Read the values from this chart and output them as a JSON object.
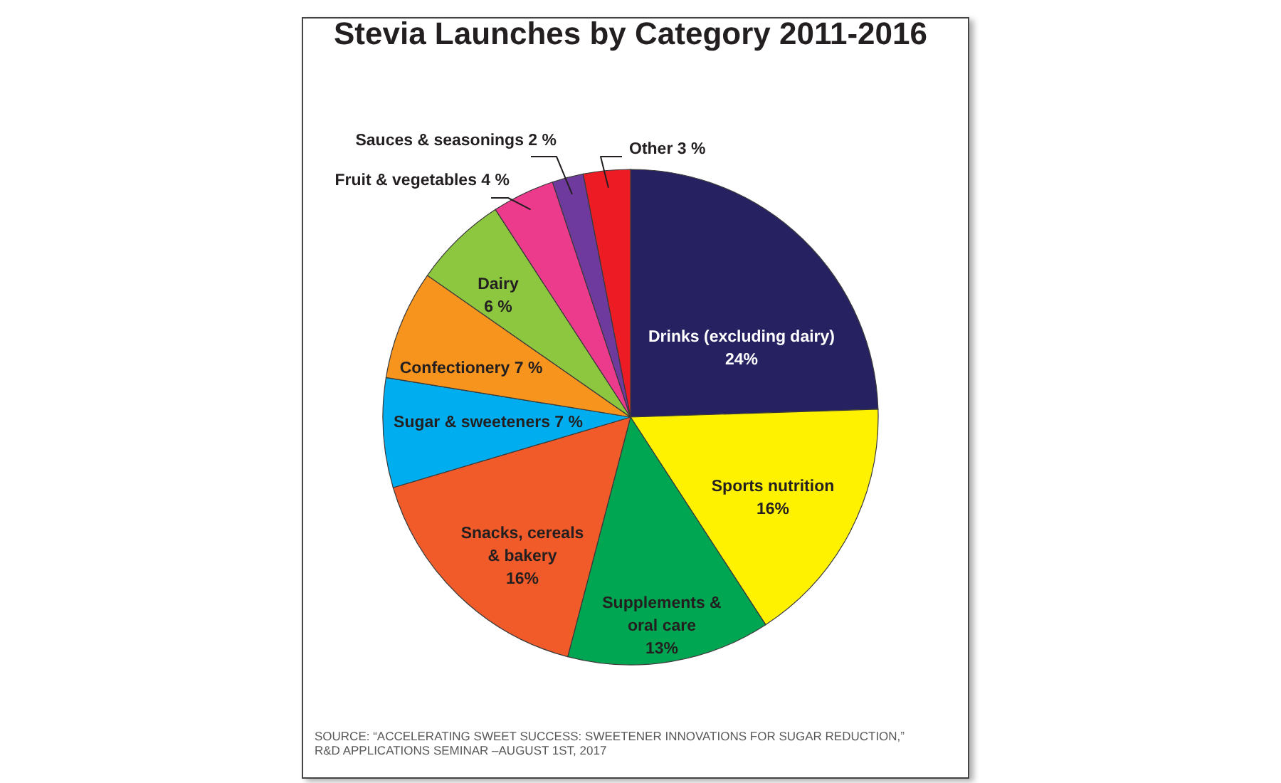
{
  "chart_data": {
    "type": "pie",
    "title": "Stevia Launches by Category 2011-2016",
    "categories": [
      "Drinks (excluding dairy)",
      "Sports nutrition",
      "Supplements & oral care",
      "Snacks, cereals & bakery",
      "Sugar & sweeteners",
      "Confectionery",
      "Dairy",
      "Fruit & vegetables",
      "Sauces & seasonings",
      "Other"
    ],
    "values": [
      24,
      16,
      13,
      16,
      7,
      7,
      6,
      4,
      2,
      3
    ],
    "value_labels": [
      "24%",
      "16%",
      "13%",
      "16%",
      "7 %",
      "7 %",
      "6 %",
      "4 %",
      "2 %",
      "3 %"
    ],
    "colors": [
      "#262262",
      "#fff200",
      "#00a651",
      "#f15a29",
      "#00aeef",
      "#f7941d",
      "#8dc63f",
      "#ec3a8c",
      "#6f3a9e",
      "#ed1c24"
    ],
    "annotations": [
      "SOURCE: “ACCELERATING SWEET SUCCESS: SWEETENER INNOVATIONS FOR SUGAR REDUCTION,” R&D APPLICATIONS SEMINAR –AUGUST 1ST, 2017"
    ]
  }
}
